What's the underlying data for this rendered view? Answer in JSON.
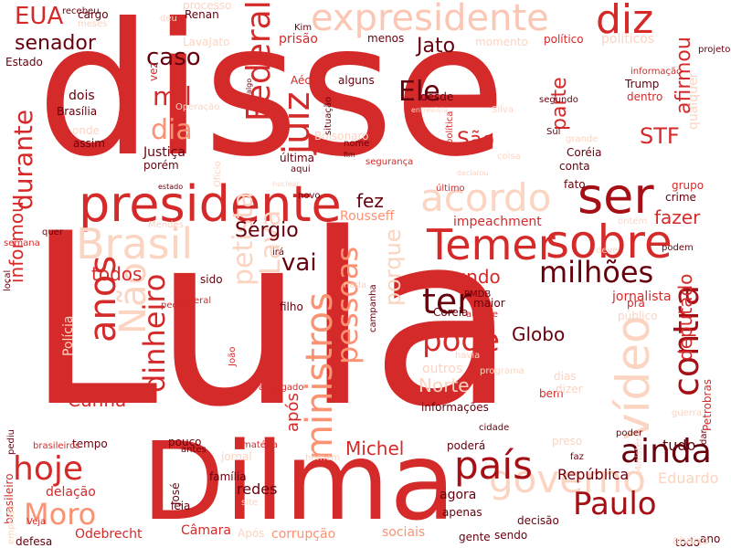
{
  "words": [
    {
      "text": "disse",
      "color": "#d42a2a"
    },
    {
      "text": "Lula",
      "color": "#d42a2a"
    },
    {
      "text": "Dilma",
      "color": "#d42a2a"
    },
    {
      "text": "presidente",
      "color": "#d42a2a"
    },
    {
      "text": "expresidente",
      "color": "#fbc7b4"
    },
    {
      "text": "diz",
      "color": "#d42a2a"
    },
    {
      "text": "Brasil",
      "color": "#fcd4c2"
    },
    {
      "text": "ser",
      "color": "#a50f15"
    },
    {
      "text": "sobre",
      "color": "#d42a2a"
    },
    {
      "text": "Temer",
      "color": "#d42a2a"
    },
    {
      "text": "acordo",
      "color": "#fcd4c2"
    },
    {
      "text": "governo",
      "color": "#fcd4c2"
    },
    {
      "text": "país",
      "color": "#a50f15"
    },
    {
      "text": "ainda",
      "color": "#67000d"
    },
    {
      "text": "Paulo",
      "color": "#a50f15"
    },
    {
      "text": "hoje",
      "color": "#d42a2a"
    },
    {
      "text": "Moro",
      "color": "#fc9272"
    },
    {
      "text": "contra",
      "color": "#a50f15"
    },
    {
      "text": "vídeo",
      "color": "#fcd4c2"
    },
    {
      "text": "milhões",
      "color": "#67000d"
    },
    {
      "text": "ter",
      "color": "#67000d"
    },
    {
      "text": "pode",
      "color": "#d42a2a"
    },
    {
      "text": "anos",
      "color": "#d42a2a"
    },
    {
      "text": "Não",
      "color": "#fcd4c2"
    },
    {
      "text": "dinheiro",
      "color": "#d42a2a"
    },
    {
      "text": "ministros",
      "color": "#fc9272"
    },
    {
      "text": "pessoas",
      "color": "#fc9272"
    },
    {
      "text": "Federal",
      "color": "#d42a2a"
    },
    {
      "text": "juiz",
      "color": "#d42a2a"
    },
    {
      "text": "durante",
      "color": "#d42a2a"
    },
    {
      "text": "Ele",
      "color": "#67000d"
    },
    {
      "text": "mil",
      "color": "#d42a2a"
    },
    {
      "text": "dia",
      "color": "#fc9272"
    },
    {
      "text": "caso",
      "color": "#67000d"
    },
    {
      "text": "senador",
      "color": "#67000d"
    },
    {
      "text": "EUA",
      "color": "#d42a2a"
    },
    {
      "text": "Jato",
      "color": "#67000d"
    },
    {
      "text": "parte",
      "color": "#d42a2a"
    },
    {
      "text": "afirmou",
      "color": "#d42a2a"
    },
    {
      "text": "STF",
      "color": "#d42a2a"
    },
    {
      "text": "São",
      "color": "#d42a2a"
    },
    {
      "text": "fazer",
      "color": "#d42a2a"
    },
    {
      "text": "deputado",
      "color": "#d42a2a"
    },
    {
      "text": "vai",
      "color": "#67000d"
    },
    {
      "text": "todos",
      "color": "#d42a2a"
    },
    {
      "text": "mundo",
      "color": "#d42a2a"
    },
    {
      "text": "Cunha",
      "color": "#d42a2a"
    },
    {
      "text": "informou",
      "color": "#d42a2a"
    },
    {
      "text": "Michel",
      "color": "#d42a2a"
    },
    {
      "text": "Globo",
      "color": "#67000d"
    },
    {
      "text": "petista",
      "color": "#fcd4c2"
    },
    {
      "text": "Lava",
      "color": "#fcd4c2"
    },
    {
      "text": "Sérgio",
      "color": "#67000d"
    },
    {
      "text": "fez",
      "color": "#67000d"
    },
    {
      "text": "porque",
      "color": "#fcd4c2"
    },
    {
      "text": "Norte",
      "color": "#fcd4c2"
    },
    {
      "text": "República",
      "color": "#67000d"
    },
    {
      "text": "Eduardo",
      "color": "#fcd4c2"
    },
    {
      "text": "tudo",
      "color": "#67000d"
    },
    {
      "text": "após",
      "color": "#d42a2a"
    },
    {
      "text": "Odebrecht",
      "color": "#d42a2a"
    },
    {
      "text": "Câmara",
      "color": "#d42a2a"
    },
    {
      "text": "corrupção",
      "color": "#fc9272"
    },
    {
      "text": "sociais",
      "color": "#fc9272"
    },
    {
      "text": "redes",
      "color": "#67000d"
    },
    {
      "text": "delação",
      "color": "#d42a2a"
    },
    {
      "text": "sendo",
      "color": "#67000d"
    },
    {
      "text": "agora",
      "color": "#67000d"
    },
    {
      "text": "outros",
      "color": "#fcd4c2"
    },
    {
      "text": "impeachment",
      "color": "#d42a2a"
    },
    {
      "text": "Rousseff",
      "color": "#fc9272"
    },
    {
      "text": "prisão",
      "color": "#d42a2a"
    },
    {
      "text": "momento",
      "color": "#fcd4c2"
    },
    {
      "text": "políticos",
      "color": "#fcd4c2"
    },
    {
      "text": "dois",
      "color": "#67000d"
    },
    {
      "text": "Brasília",
      "color": "#67000d"
    },
    {
      "text": "onde",
      "color": "#fcd4c2"
    },
    {
      "text": "assim",
      "color": "#67000d"
    },
    {
      "text": "Justiça",
      "color": "#67000d"
    },
    {
      "text": "porém",
      "color": "#67000d"
    },
    {
      "text": "última",
      "color": "#67000d"
    },
    {
      "text": "Bolsonaro",
      "color": "#fcd4c2"
    },
    {
      "text": "Coréia",
      "color": "#67000d"
    },
    {
      "text": "conta",
      "color": "#67000d"
    },
    {
      "text": "fato",
      "color": "#67000d"
    },
    {
      "text": "grupo",
      "color": "#d42a2a"
    },
    {
      "text": "crime",
      "color": "#67000d"
    },
    {
      "text": "Trump",
      "color": "#67000d"
    },
    {
      "text": "dentro",
      "color": "#d42a2a"
    },
    {
      "text": "político",
      "color": "#d42a2a"
    },
    {
      "text": "qualquer",
      "color": "#fcd4c2"
    },
    {
      "text": "jornalista",
      "color": "#d42a2a"
    },
    {
      "text": "Polícia",
      "color": "#fcd4c2"
    },
    {
      "text": "cargo",
      "color": "#67000d"
    },
    {
      "text": "Renan",
      "color": "#67000d"
    },
    {
      "text": "processo",
      "color": "#fcd4c2"
    },
    {
      "text": "LavaJato",
      "color": "#fcd4c2"
    },
    {
      "text": "Aécio",
      "color": "#d42a2a"
    },
    {
      "text": "vez",
      "color": "#d42a2a"
    },
    {
      "text": "menos",
      "color": "#67000d"
    },
    {
      "text": "alguns",
      "color": "#67000d"
    },
    {
      "text": "desde",
      "color": "#67000d"
    },
    {
      "text": "Estado",
      "color": "#67000d"
    },
    {
      "text": "filho",
      "color": "#67000d"
    },
    {
      "text": "sido",
      "color": "#67000d"
    },
    {
      "text": "Coreia",
      "color": "#67000d"
    },
    {
      "text": "maior",
      "color": "#67000d"
    },
    {
      "text": "informações",
      "color": "#67000d"
    },
    {
      "text": "bem",
      "color": "#d42a2a"
    },
    {
      "text": "dias",
      "color": "#fcd4c2"
    },
    {
      "text": "dizer",
      "color": "#fcd4c2"
    },
    {
      "text": "pra",
      "color": "#d42a2a"
    },
    {
      "text": "público",
      "color": "#fcd4c2"
    },
    {
      "text": "gente",
      "color": "#67000d"
    },
    {
      "text": "decisão",
      "color": "#67000d"
    },
    {
      "text": "apenas",
      "color": "#67000d"
    },
    {
      "text": "poderá",
      "color": "#67000d"
    },
    {
      "text": "preso",
      "color": "#fcd4c2"
    },
    {
      "text": "família",
      "color": "#67000d"
    },
    {
      "text": "leia",
      "color": "#67000d"
    },
    {
      "text": "José",
      "color": "#67000d"
    },
    {
      "text": "jornal",
      "color": "#fcd4c2"
    },
    {
      "text": "Após",
      "color": "#fcd4c2"
    },
    {
      "text": "pouco",
      "color": "#67000d"
    },
    {
      "text": "tempo",
      "color": "#67000d"
    },
    {
      "text": "brasileiro",
      "color": "#d42a2a"
    },
    {
      "text": "empresa",
      "color": "#fcd4c2"
    },
    {
      "text": "defesa",
      "color": "#67000d"
    },
    {
      "text": "Veja",
      "color": "#d42a2a"
    },
    {
      "text": "ano",
      "color": "#67000d"
    },
    {
      "text": "todo",
      "color": "#67000d"
    },
    {
      "text": "abaixo",
      "color": "#fcd4c2"
    },
    {
      "text": "Petrobras",
      "color": "#d42a2a"
    },
    {
      "text": "federal",
      "color": "#d42a2a"
    },
    {
      "text": "nada",
      "color": "#fcd4c2"
    },
    {
      "text": "campanha",
      "color": "#67000d"
    },
    {
      "text": "novo",
      "color": "#67000d"
    },
    {
      "text": "aqui",
      "color": "#67000d"
    },
    {
      "text": "nome",
      "color": "#67000d"
    },
    {
      "text": "situação",
      "color": "#67000d"
    },
    {
      "text": "informação",
      "color": "#d42a2a"
    },
    {
      "text": "segundo",
      "color": "#67000d"
    },
    {
      "text": "recebeu",
      "color": "#67000d"
    },
    {
      "text": "meses",
      "color": "#fcd4c2"
    },
    {
      "text": "deu",
      "color": "#fcd4c2"
    },
    {
      "text": "Kim",
      "color": "#67000d"
    },
    {
      "text": "projeto",
      "color": "#67000d"
    },
    {
      "text": "Operação",
      "color": "#fcd4c2"
    },
    {
      "text": "Silva",
      "color": "#fcd4c2"
    },
    {
      "text": "política",
      "color": "#d42a2a"
    },
    {
      "text": "último",
      "color": "#d42a2a"
    },
    {
      "text": "ontem",
      "color": "#fcd4c2"
    },
    {
      "text": "quer",
      "color": "#67000d"
    },
    {
      "text": "local",
      "color": "#67000d"
    },
    {
      "text": "semana",
      "color": "#d42a2a"
    },
    {
      "text": "Mendes",
      "color": "#fcd4c2"
    },
    {
      "text": "Ministério",
      "color": "#fcd4c2"
    },
    {
      "text": "pedido",
      "color": "#d42a2a"
    },
    {
      "text": "grande",
      "color": "#fcd4c2"
    },
    {
      "text": "Sul",
      "color": "#67000d"
    },
    {
      "text": "coisa",
      "color": "#fcd4c2"
    },
    {
      "text": "antes",
      "color": "#67000d"
    },
    {
      "text": "cidade",
      "color": "#67000d"
    },
    {
      "text": "poder",
      "color": "#67000d"
    },
    {
      "text": "faz",
      "color": "#67000d"
    },
    {
      "text": "dar",
      "color": "#67000d"
    },
    {
      "text": "guerra",
      "color": "#fcd4c2"
    },
    {
      "text": "havia",
      "color": "#fcd4c2"
    },
    {
      "text": "programa",
      "color": "#fcd4c2"
    },
    {
      "text": "PMDB",
      "color": "#67000d"
    },
    {
      "text": "ataque",
      "color": "#d42a2a"
    },
    {
      "text": "deve",
      "color": "#fcd4c2"
    },
    {
      "text": "podem",
      "color": "#67000d"
    },
    {
      "text": "irá",
      "color": "#67000d"
    },
    {
      "text": "pediu",
      "color": "#67000d"
    },
    {
      "text": "advogado",
      "color": "#d42a2a"
    },
    {
      "text": "João",
      "color": "#d42a2a"
    },
    {
      "text": "brasileiros",
      "color": "#d42a2a"
    },
    {
      "text": "homem",
      "color": "#fcd4c2"
    },
    {
      "text": "matéria",
      "color": "#d42a2a"
    },
    {
      "text": "site",
      "color": "#fcd4c2"
    },
    {
      "text": "Ofício",
      "color": "#fcd4c2"
    },
    {
      "text": "segurança",
      "color": "#d42a2a"
    },
    {
      "text": "estado",
      "color": "#67000d"
    },
    {
      "text": "fim",
      "color": "#67000d"
    },
    {
      "text": "nuclear",
      "color": "#fcd4c2"
    },
    {
      "text": "declarou",
      "color": "#fcd4c2"
    },
    {
      "text": "entrevista",
      "color": "#fcd4c2"
    },
    {
      "text": "algo",
      "color": "#67000d"
    },
    {
      "text": "Ela",
      "color": "#67000d"
    }
  ]
}
